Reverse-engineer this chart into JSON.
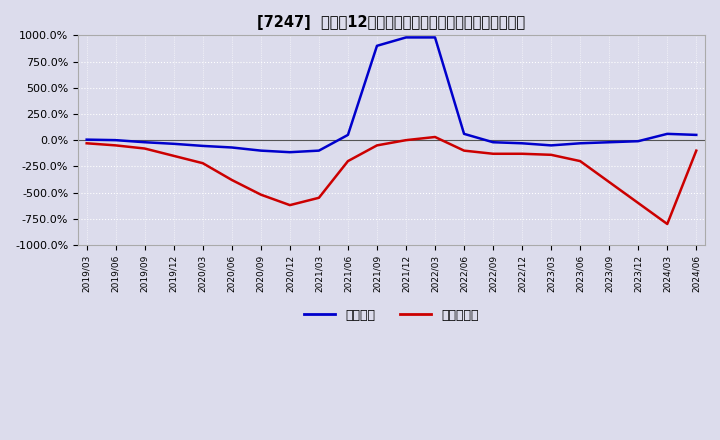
{
  "title": "[7247]  利益の12か月移動合計の対前年同期増減率の推移",
  "ylim": [
    -1000,
    1000
  ],
  "yticks": [
    -1000,
    -750,
    -500,
    -250,
    0,
    250,
    500,
    750,
    1000
  ],
  "ytick_labels": [
    "-1000.0%",
    "-750.0%",
    "-500.0%",
    "-250.0%",
    "0.0%",
    "250.0%",
    "500.0%",
    "750.0%",
    "1000.0%"
  ],
  "legend_labels": [
    "経常利益",
    "当期純利益"
  ],
  "legend_colors": [
    "#0000cc",
    "#cc0000"
  ],
  "bg_color": "#dcdcec",
  "plot_bg_color": "#dcdcec",
  "grid_color": "#ffffff",
  "dates": [
    "2019/03",
    "2019/06",
    "2019/09",
    "2019/12",
    "2020/03",
    "2020/06",
    "2020/09",
    "2020/12",
    "2021/03",
    "2021/06",
    "2021/09",
    "2021/12",
    "2022/03",
    "2022/06",
    "2022/09",
    "2022/12",
    "2023/03",
    "2023/06",
    "2023/09",
    "2023/12",
    "2024/03",
    "2024/06"
  ],
  "operating_profit": [
    5,
    0,
    -20,
    -35,
    -55,
    -70,
    -100,
    -115,
    -100,
    50,
    900,
    980,
    980,
    60,
    -20,
    -30,
    -50,
    -30,
    -20,
    -10,
    60,
    50
  ],
  "net_profit": [
    -30,
    -50,
    -80,
    -150,
    -220,
    -380,
    -520,
    -620,
    -550,
    -200,
    -50,
    0,
    30,
    -100,
    -130,
    -130,
    -140,
    -200,
    -400,
    -600,
    -800,
    -100
  ]
}
